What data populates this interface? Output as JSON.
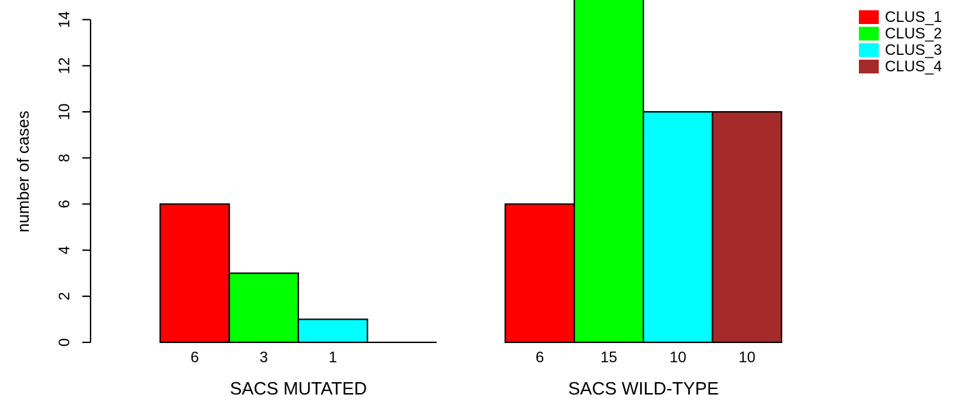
{
  "chart_data": {
    "type": "bar",
    "ylabel": "number of cases",
    "yticks": [
      0,
      2,
      4,
      6,
      8,
      10,
      12,
      14
    ],
    "ylim": [
      0,
      15
    ],
    "colors": {
      "CLUS_1": "#ff0000",
      "CLUS_2": "#00ff00",
      "CLUS_3": "#00ffff",
      "CLUS_4": "#a52a2a"
    },
    "legend": [
      "CLUS_1",
      "CLUS_2",
      "CLUS_3",
      "CLUS_4"
    ],
    "groups": [
      {
        "label": "SACS MUTATED",
        "bars": [
          {
            "series": "CLUS_1",
            "value": 6,
            "label": "6"
          },
          {
            "series": "CLUS_2",
            "value": 3,
            "label": "3"
          },
          {
            "series": "CLUS_3",
            "value": 1,
            "label": "1"
          },
          {
            "series": "CLUS_4",
            "value": 0,
            "label": ""
          }
        ]
      },
      {
        "label": "SACS WILD-TYPE",
        "bars": [
          {
            "series": "CLUS_1",
            "value": 6,
            "label": "6"
          },
          {
            "series": "CLUS_2",
            "value": 15,
            "label": "15"
          },
          {
            "series": "CLUS_3",
            "value": 10,
            "label": "10"
          },
          {
            "series": "CLUS_4",
            "value": 10,
            "label": "10"
          }
        ]
      }
    ]
  }
}
